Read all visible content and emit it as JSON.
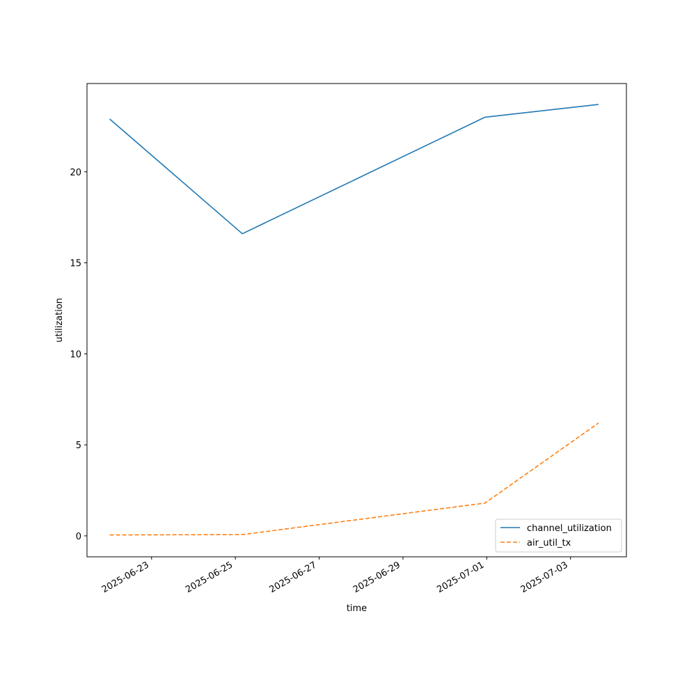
{
  "chart_data": {
    "type": "line",
    "title": "",
    "xlabel": "time",
    "ylabel": "utilization",
    "x": [
      "2025-06-22T00:00",
      "2025-06-25T04:00",
      "2025-06-30T23:00",
      "2025-07-03T16:00"
    ],
    "series": [
      {
        "name": "channel_utilization",
        "values": [
          22.9,
          16.6,
          23.0,
          23.7
        ],
        "color": "#1f77b4",
        "style": "solid"
      },
      {
        "name": "air_util_tx",
        "values": [
          0.05,
          0.07,
          1.8,
          6.2
        ],
        "color": "#ff7f0e",
        "style": "dashed"
      }
    ],
    "xlim": [
      "2025-06-21T11:00",
      "2025-07-04T08:00"
    ],
    "ylim": [
      -1.15,
      24.85
    ],
    "xticks": [
      "2025-06-23",
      "2025-06-25",
      "2025-06-27",
      "2025-06-29",
      "2025-07-01",
      "2025-07-03"
    ],
    "yticks": [
      0,
      5,
      10,
      15,
      20
    ],
    "grid": false,
    "legend_position": "lower-right"
  }
}
